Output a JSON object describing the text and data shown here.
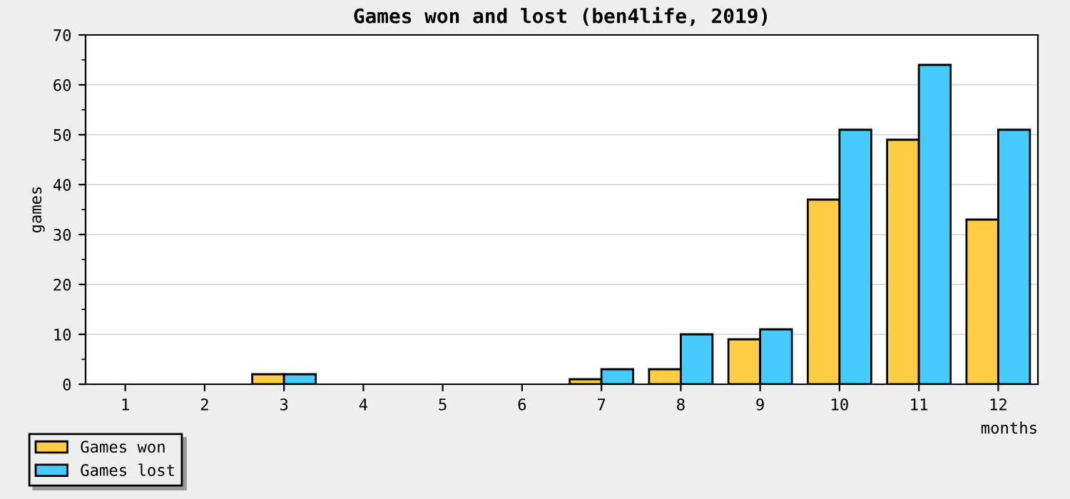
{
  "chart_data": {
    "type": "bar",
    "title": "Games won and lost (ben4life, 2019)",
    "xlabel": "months",
    "ylabel": "games",
    "categories": [
      "1",
      "2",
      "3",
      "4",
      "5",
      "6",
      "7",
      "8",
      "9",
      "10",
      "11",
      "12"
    ],
    "series": [
      {
        "name": "Games won",
        "color": "#ffcc44",
        "values": [
          0,
          0,
          2,
          0,
          0,
          0,
          1,
          3,
          9,
          37,
          49,
          33
        ]
      },
      {
        "name": "Games lost",
        "color": "#44ccff",
        "values": [
          0,
          0,
          2,
          0,
          0,
          0,
          3,
          10,
          11,
          51,
          64,
          51
        ]
      }
    ],
    "ylim": [
      0,
      70
    ],
    "yticks": [
      0,
      10,
      20,
      30,
      40,
      50,
      60,
      70
    ],
    "grid": "y",
    "legend": "bottom left"
  }
}
